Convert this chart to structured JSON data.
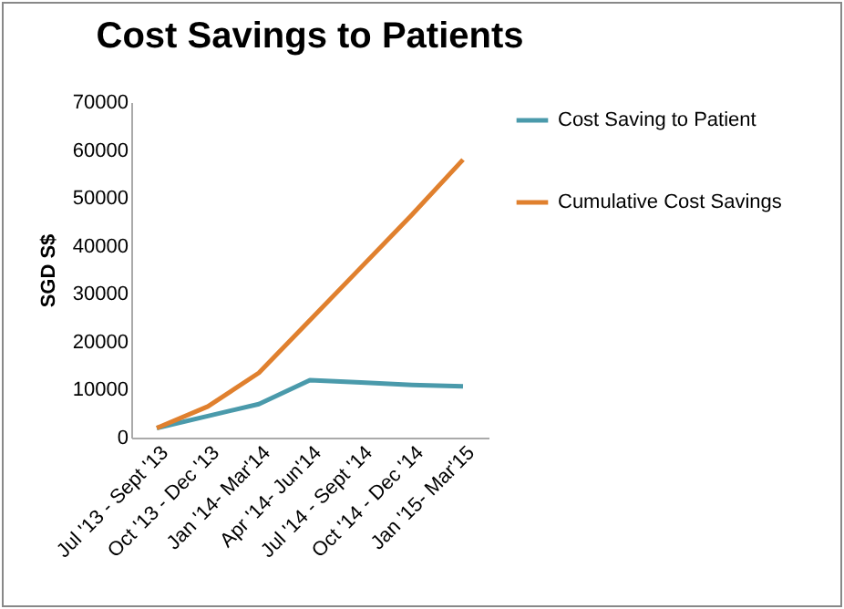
{
  "chart_data": {
    "type": "line",
    "title": "Cost Savings to Patients",
    "ylabel": "SGD S$",
    "categories": [
      "Jul '13 - Sept '13",
      "Oct '13 - Dec '13",
      "Jan '14- Mar'14",
      "Apr '14- Jun'14",
      "Jul '14 - Sept '14",
      "Oct '14 - Dec '14",
      "Jan '15- Mar'15"
    ],
    "series": [
      {
        "name": "Cost Saving to Patient",
        "color": "#4a9aab",
        "values": [
          2000,
          4500,
          7000,
          12000,
          11500,
          11000,
          10700
        ]
      },
      {
        "name": "Cumulative Cost Savings",
        "color": "#e0802e",
        "values": [
          2000,
          6500,
          13500,
          24500,
          35500,
          46500,
          58000
        ]
      }
    ],
    "ylim": [
      0,
      70000
    ],
    "yticks": [
      0,
      10000,
      20000,
      30000,
      40000,
      50000,
      60000,
      70000
    ],
    "grid": false,
    "legend": "right",
    "marker": "none",
    "line_style": "solid"
  }
}
